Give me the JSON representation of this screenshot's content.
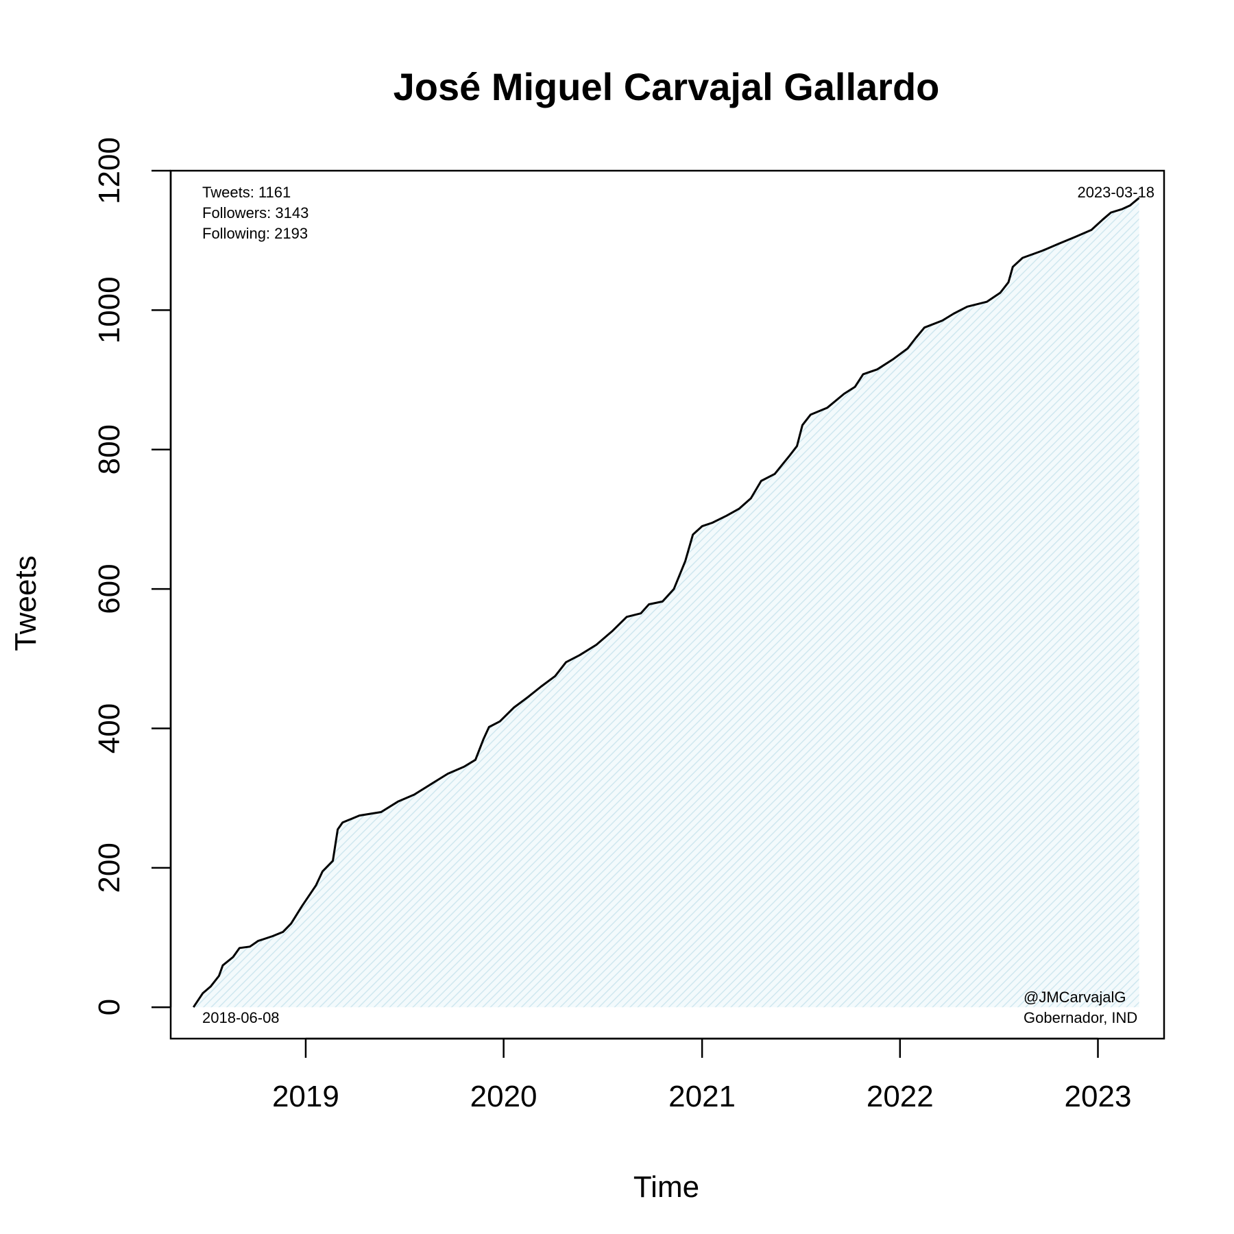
{
  "chart_data": {
    "type": "area",
    "title": "José Miguel Carvajal Gallardo",
    "xlabel": "Time",
    "ylabel": "Tweets",
    "xlim": [
      "2018-04-27",
      "2023-05-03"
    ],
    "ylim": [
      -45,
      1200
    ],
    "x_ticks": [
      "2019-01-01",
      "2020-01-01",
      "2021-01-01",
      "2022-01-01",
      "2023-01-01"
    ],
    "x_tick_labels": [
      "2019",
      "2020",
      "2021",
      "2022",
      "2023"
    ],
    "y_ticks": [
      0,
      200,
      400,
      600,
      800,
      1000,
      1200
    ],
    "y_tick_labels": [
      "0",
      "200",
      "400",
      "600",
      "800",
      "1000",
      "1200"
    ],
    "grid": false,
    "fill_color": "#cfe7ef",
    "line_color": "#000000",
    "annotations": {
      "stats": [
        "Tweets: 1161",
        "Followers: 3143",
        "Following: 2193"
      ],
      "start_date": "2018-06-08",
      "end_date": "2023-03-18",
      "handle": "@JMCarvajalG",
      "role": "Gobernador, IND"
    },
    "points": [
      [
        "2018-06-08",
        0
      ],
      [
        "2018-06-25",
        20
      ],
      [
        "2018-07-10",
        30
      ],
      [
        "2018-07-25",
        45
      ],
      [
        "2018-08-01",
        60
      ],
      [
        "2018-08-20",
        72
      ],
      [
        "2018-09-01",
        85
      ],
      [
        "2018-09-20",
        87
      ],
      [
        "2018-10-05",
        95
      ],
      [
        "2018-11-01",
        102
      ],
      [
        "2018-11-20",
        108
      ],
      [
        "2018-12-05",
        120
      ],
      [
        "2018-12-25",
        145
      ],
      [
        "2019-01-20",
        175
      ],
      [
        "2019-02-01",
        195
      ],
      [
        "2019-02-20",
        210
      ],
      [
        "2019-03-01",
        255
      ],
      [
        "2019-03-10",
        265
      ],
      [
        "2019-04-10",
        275
      ],
      [
        "2019-05-20",
        280
      ],
      [
        "2019-06-20",
        295
      ],
      [
        "2019-07-20",
        305
      ],
      [
        "2019-08-20",
        320
      ],
      [
        "2019-09-20",
        335
      ],
      [
        "2019-10-20",
        345
      ],
      [
        "2019-11-10",
        355
      ],
      [
        "2019-11-25",
        385
      ],
      [
        "2019-12-05",
        402
      ],
      [
        "2019-12-25",
        410
      ],
      [
        "2020-01-20",
        430
      ],
      [
        "2020-02-15",
        445
      ],
      [
        "2020-03-10",
        460
      ],
      [
        "2020-04-05",
        475
      ],
      [
        "2020-04-25",
        495
      ],
      [
        "2020-05-20",
        505
      ],
      [
        "2020-06-20",
        520
      ],
      [
        "2020-07-20",
        540
      ],
      [
        "2020-08-15",
        560
      ],
      [
        "2020-09-10",
        565
      ],
      [
        "2020-09-25",
        578
      ],
      [
        "2020-10-20",
        582
      ],
      [
        "2020-11-10",
        600
      ],
      [
        "2020-12-01",
        640
      ],
      [
        "2020-12-15",
        678
      ],
      [
        "2021-01-01",
        690
      ],
      [
        "2021-01-20",
        695
      ],
      [
        "2021-02-15",
        705
      ],
      [
        "2021-03-10",
        715
      ],
      [
        "2021-04-01",
        730
      ],
      [
        "2021-04-20",
        755
      ],
      [
        "2021-05-15",
        765
      ],
      [
        "2021-06-10",
        790
      ],
      [
        "2021-06-25",
        805
      ],
      [
        "2021-07-05",
        835
      ],
      [
        "2021-07-20",
        850
      ],
      [
        "2021-08-20",
        860
      ],
      [
        "2021-09-20",
        880
      ],
      [
        "2021-10-10",
        890
      ],
      [
        "2021-10-25",
        908
      ],
      [
        "2021-11-20",
        915
      ],
      [
        "2021-12-20",
        930
      ],
      [
        "2022-01-15",
        945
      ],
      [
        "2022-01-30",
        960
      ],
      [
        "2022-02-15",
        975
      ],
      [
        "2022-03-20",
        985
      ],
      [
        "2022-04-10",
        995
      ],
      [
        "2022-05-05",
        1005
      ],
      [
        "2022-06-10",
        1012
      ],
      [
        "2022-07-05",
        1025
      ],
      [
        "2022-07-20",
        1040
      ],
      [
        "2022-07-28",
        1062
      ],
      [
        "2022-08-15",
        1075
      ],
      [
        "2022-09-20",
        1085
      ],
      [
        "2022-10-20",
        1095
      ],
      [
        "2022-11-20",
        1105
      ],
      [
        "2022-12-20",
        1115
      ],
      [
        "2023-01-10",
        1130
      ],
      [
        "2023-01-25",
        1140
      ],
      [
        "2023-02-15",
        1145
      ],
      [
        "2023-03-01",
        1150
      ],
      [
        "2023-03-18",
        1161
      ]
    ]
  }
}
